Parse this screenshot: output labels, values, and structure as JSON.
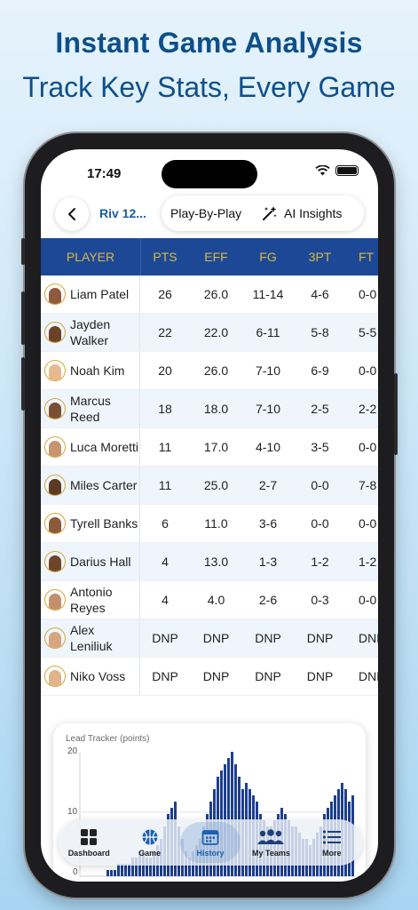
{
  "promo": {
    "headline": "Instant Game Analysis",
    "subline": "Track Key Stats, Every Game"
  },
  "status": {
    "time": "17:49"
  },
  "header": {
    "game_title": "Riv 12...",
    "play_by_play": "Play-By-Play",
    "ai_insights": "AI Insights"
  },
  "table": {
    "columns": [
      "PLAYER",
      "PTS",
      "EFF",
      "FG",
      "3PT",
      "FT"
    ],
    "rows": [
      {
        "name": "Liam Patel",
        "pts": "26",
        "eff": "26.0",
        "fg": "11-14",
        "tp": "4-6",
        "ft": "0-0"
      },
      {
        "name": "Jayden Walker",
        "pts": "22",
        "eff": "22.0",
        "fg": "6-11",
        "tp": "5-8",
        "ft": "5-5"
      },
      {
        "name": "Noah Kim",
        "pts": "20",
        "eff": "26.0",
        "fg": "7-10",
        "tp": "6-9",
        "ft": "0-0"
      },
      {
        "name": "Marcus Reed",
        "pts": "18",
        "eff": "18.0",
        "fg": "7-10",
        "tp": "2-5",
        "ft": "2-2"
      },
      {
        "name": "Luca Moretti",
        "pts": "11",
        "eff": "17.0",
        "fg": "4-10",
        "tp": "3-5",
        "ft": "0-0"
      },
      {
        "name": "Miles Carter",
        "pts": "11",
        "eff": "25.0",
        "fg": "2-7",
        "tp": "0-0",
        "ft": "7-8"
      },
      {
        "name": "Tyrell Banks",
        "pts": "6",
        "eff": "11.0",
        "fg": "3-6",
        "tp": "0-0",
        "ft": "0-0"
      },
      {
        "name": "Darius Hall",
        "pts": "4",
        "eff": "13.0",
        "fg": "1-3",
        "tp": "1-2",
        "ft": "1-2"
      },
      {
        "name": "Antonio Reyes",
        "pts": "4",
        "eff": "4.0",
        "fg": "2-6",
        "tp": "0-3",
        "ft": "0-0"
      },
      {
        "name": "Alex Leniliuk",
        "pts": "DNP",
        "eff": "DNP",
        "fg": "DNP",
        "tp": "DNP",
        "ft": "DNP"
      },
      {
        "name": "Niko Voss",
        "pts": "DNP",
        "eff": "DNP",
        "fg": "DNP",
        "tp": "DNP",
        "ft": "DNP"
      }
    ]
  },
  "tracker": {
    "title": "Lead Tracker (points)",
    "y_ticks": [
      "20",
      "10",
      "0"
    ]
  },
  "tabs": [
    {
      "label": "Dashboard",
      "icon": "grid-icon"
    },
    {
      "label": "Game",
      "icon": "basketball-icon"
    },
    {
      "label": "History",
      "icon": "calendar-icon",
      "active": true
    },
    {
      "label": "My Teams",
      "icon": "people-icon"
    },
    {
      "label": "More",
      "icon": "list-icon"
    }
  ],
  "colors": {
    "header_bg": "#1d4896",
    "header_text": "#d8b84d",
    "accent": "#1a5da8",
    "bar": "#1d3f8f"
  },
  "chart_data": {
    "type": "bar",
    "title": "Lead Tracker (points)",
    "ylim": [
      0,
      20
    ],
    "values": [
      0,
      0,
      1,
      1,
      1,
      2,
      2,
      2,
      2,
      3,
      3,
      4,
      4,
      3,
      3,
      4,
      5,
      6,
      8,
      10,
      11,
      12,
      8,
      6,
      4,
      3,
      4,
      5,
      6,
      8,
      10,
      12,
      14,
      16,
      17,
      18,
      19,
      20,
      18,
      16,
      14,
      15,
      14,
      13,
      12,
      10,
      9,
      8,
      8,
      9,
      10,
      11,
      10,
      9,
      8,
      8,
      7,
      6,
      6,
      5,
      6,
      7,
      8,
      10,
      11,
      12,
      13,
      14,
      15,
      14,
      12,
      13
    ]
  }
}
